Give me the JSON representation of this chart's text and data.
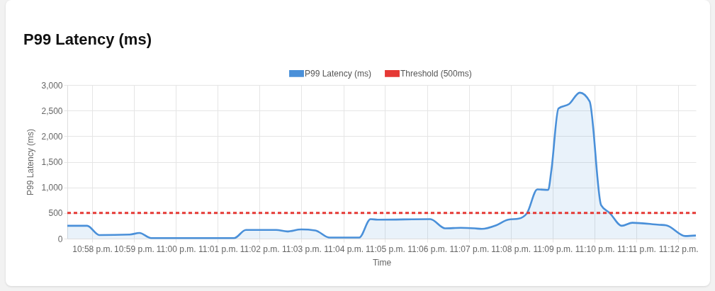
{
  "chart_data": {
    "type": "area",
    "title": "P99 Latency (ms)",
    "xlabel": "Time",
    "ylabel": "P99 Latency (ms)",
    "x": [
      22.9568,
      22.9647,
      22.9695,
      22.9817,
      22.9855,
      22.9902,
      23.0225,
      23.0232,
      23.0279,
      23.04,
      23.0443,
      23.0499,
      23.0555,
      23.0612,
      23.073,
      23.0775,
      23.0803,
      23.1013,
      23.1072,
      23.1134,
      23.119,
      23.1218,
      23.1275,
      23.1323,
      23.1365,
      23.1397,
      23.1439,
      23.1482,
      23.1495,
      23.1523,
      23.1566,
      23.1608,
      23.1647,
      23.1693,
      23.1727,
      23.1775,
      23.1817,
      23.1924,
      23.1952,
      23.2028,
      23.207
    ],
    "series": [
      {
        "name": "P99 Latency (ms)",
        "color": "#4a90d9",
        "values": [
          250,
          250,
          70,
          80,
          110,
          10,
          10,
          10,
          170,
          170,
          140,
          180,
          160,
          20,
          20,
          380,
          370,
          380,
          200,
          210,
          200,
          190,
          260,
          370,
          390,
          490,
          960,
          950,
          1340,
          2540,
          2630,
          2850,
          2680,
          650,
          500,
          250,
          310,
          270,
          260,
          50,
          60
        ]
      }
    ],
    "ref_lines": [
      {
        "axis": "y",
        "value": 500,
        "label": "Threshold (500ms)",
        "color": "#e53935",
        "line_style": "dashed"
      }
    ],
    "xlim": [
      22.9568,
      23.207
    ],
    "xticks": [
      {
        "value": 22.9667,
        "label": "10:58 p.m."
      },
      {
        "value": 22.9833,
        "label": "10:59 p.m."
      },
      {
        "value": 23,
        "label": "11:00 p.m."
      },
      {
        "value": 23.0167,
        "label": "11:01 p.m."
      },
      {
        "value": 23.0333,
        "label": "11:02 p.m."
      },
      {
        "value": 23.05,
        "label": "11:03 p.m."
      },
      {
        "value": 23.0667,
        "label": "11:04 p.m."
      },
      {
        "value": 23.0833,
        "label": "11:05 p.m."
      },
      {
        "value": 23.1,
        "label": "11:06 p.m."
      },
      {
        "value": 23.1167,
        "label": "11:07 p.m."
      },
      {
        "value": 23.1333,
        "label": "11:08 p.m."
      },
      {
        "value": 23.15,
        "label": "11:09 p.m."
      },
      {
        "value": 23.1667,
        "label": "11:10 p.m."
      },
      {
        "value": 23.1833,
        "label": "11:11 p.m."
      },
      {
        "value": 23.2,
        "label": "11:12 p.m."
      }
    ],
    "ylim": [
      0,
      3000
    ],
    "yticks": [
      0,
      500,
      {
        "value": 1000,
        "label": "1,000"
      },
      {
        "value": 1500,
        "label": "1,500"
      },
      {
        "value": 2000,
        "label": "2,000"
      },
      {
        "value": 2500,
        "label": "2,500"
      },
      {
        "value": 3000,
        "label": "3,000"
      }
    ],
    "grid": true,
    "legend": "top"
  }
}
